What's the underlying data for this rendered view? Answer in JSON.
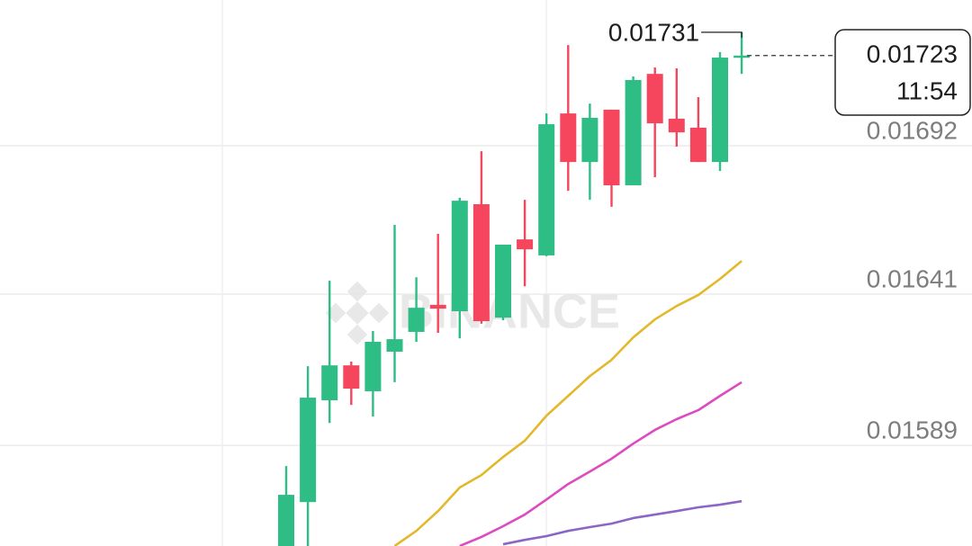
{
  "chart_data": {
    "type": "candlestick",
    "watermark": "BINANCE",
    "ylim": [
      0.015544,
      0.017421
    ],
    "yticks": [
      0.01589,
      0.01641,
      0.01692
    ],
    "grid": true,
    "up_color": "#2ebd85",
    "down_color": "#f6465d",
    "candles": {
      "open": [
        0.015544,
        0.015695,
        0.016045,
        0.016165,
        0.016076,
        0.016212,
        0.01628,
        0.016373,
        0.016351,
        0.016719,
        0.016329,
        0.016598,
        0.016543,
        0.017031,
        0.016864,
        0.017044,
        0.016784,
        0.017167,
        0.017013,
        0.016982,
        0.016864,
        0.017223
      ],
      "high": [
        0.015819,
        0.016162,
        0.016456,
        0.016178,
        0.016283,
        0.016648,
        0.016468,
        0.016617,
        0.016741,
        0.016901,
        0.01658,
        0.016734,
        0.017031,
        0.017266,
        0.017065,
        0.017044,
        0.017158,
        0.017189,
        0.017186,
        0.017087,
        0.017242,
        0.01731
      ],
      "low": [
        0.015544,
        0.015544,
        0.015967,
        0.016029,
        0.015989,
        0.016107,
        0.016246,
        0.016277,
        0.016258,
        0.016308,
        0.01632,
        0.016437,
        0.01654,
        0.016765,
        0.016734,
        0.01671,
        0.016784,
        0.016812,
        0.016917,
        0.016864,
        0.016833,
        0.017167
      ],
      "close": [
        0.01572,
        0.016054,
        0.016165,
        0.016085,
        0.016246,
        0.016255,
        0.016363,
        0.01636,
        0.016731,
        0.016317,
        0.01658,
        0.016564,
        0.016994,
        0.016864,
        0.017016,
        0.016784,
        0.017146,
        0.016997,
        0.016966,
        0.016864,
        0.017223,
        0.01723
      ]
    },
    "moving_averages": [
      {
        "color": "#e3b82b",
        "values": [
          null,
          null,
          null,
          null,
          null,
          0.015544,
          0.015596,
          0.015664,
          0.015745,
          0.015788,
          0.01585,
          0.015906,
          0.015992,
          0.01606,
          0.016128,
          0.016184,
          0.016261,
          0.016323,
          0.016369,
          0.016407,
          0.016462,
          0.016524
        ]
      },
      {
        "color": "#dc4bc0",
        "values": [
          null,
          null,
          null,
          null,
          null,
          null,
          null,
          null,
          0.015544,
          0.015575,
          0.015612,
          0.015652,
          0.015704,
          0.015757,
          0.0158,
          0.015844,
          0.015896,
          0.015943,
          0.01598,
          0.016011,
          0.01606,
          0.016107
        ]
      },
      {
        "color": "#8c66c4",
        "values": [
          null,
          null,
          null,
          null,
          null,
          null,
          null,
          null,
          null,
          null,
          0.01555,
          0.015565,
          0.015578,
          0.015596,
          0.015609,
          0.015621,
          0.01564,
          0.015652,
          0.015664,
          0.015677,
          0.015686,
          0.015698
        ]
      }
    ],
    "current_price": 0.01723,
    "countdown": "11:54",
    "high_label": 0.01731
  }
}
